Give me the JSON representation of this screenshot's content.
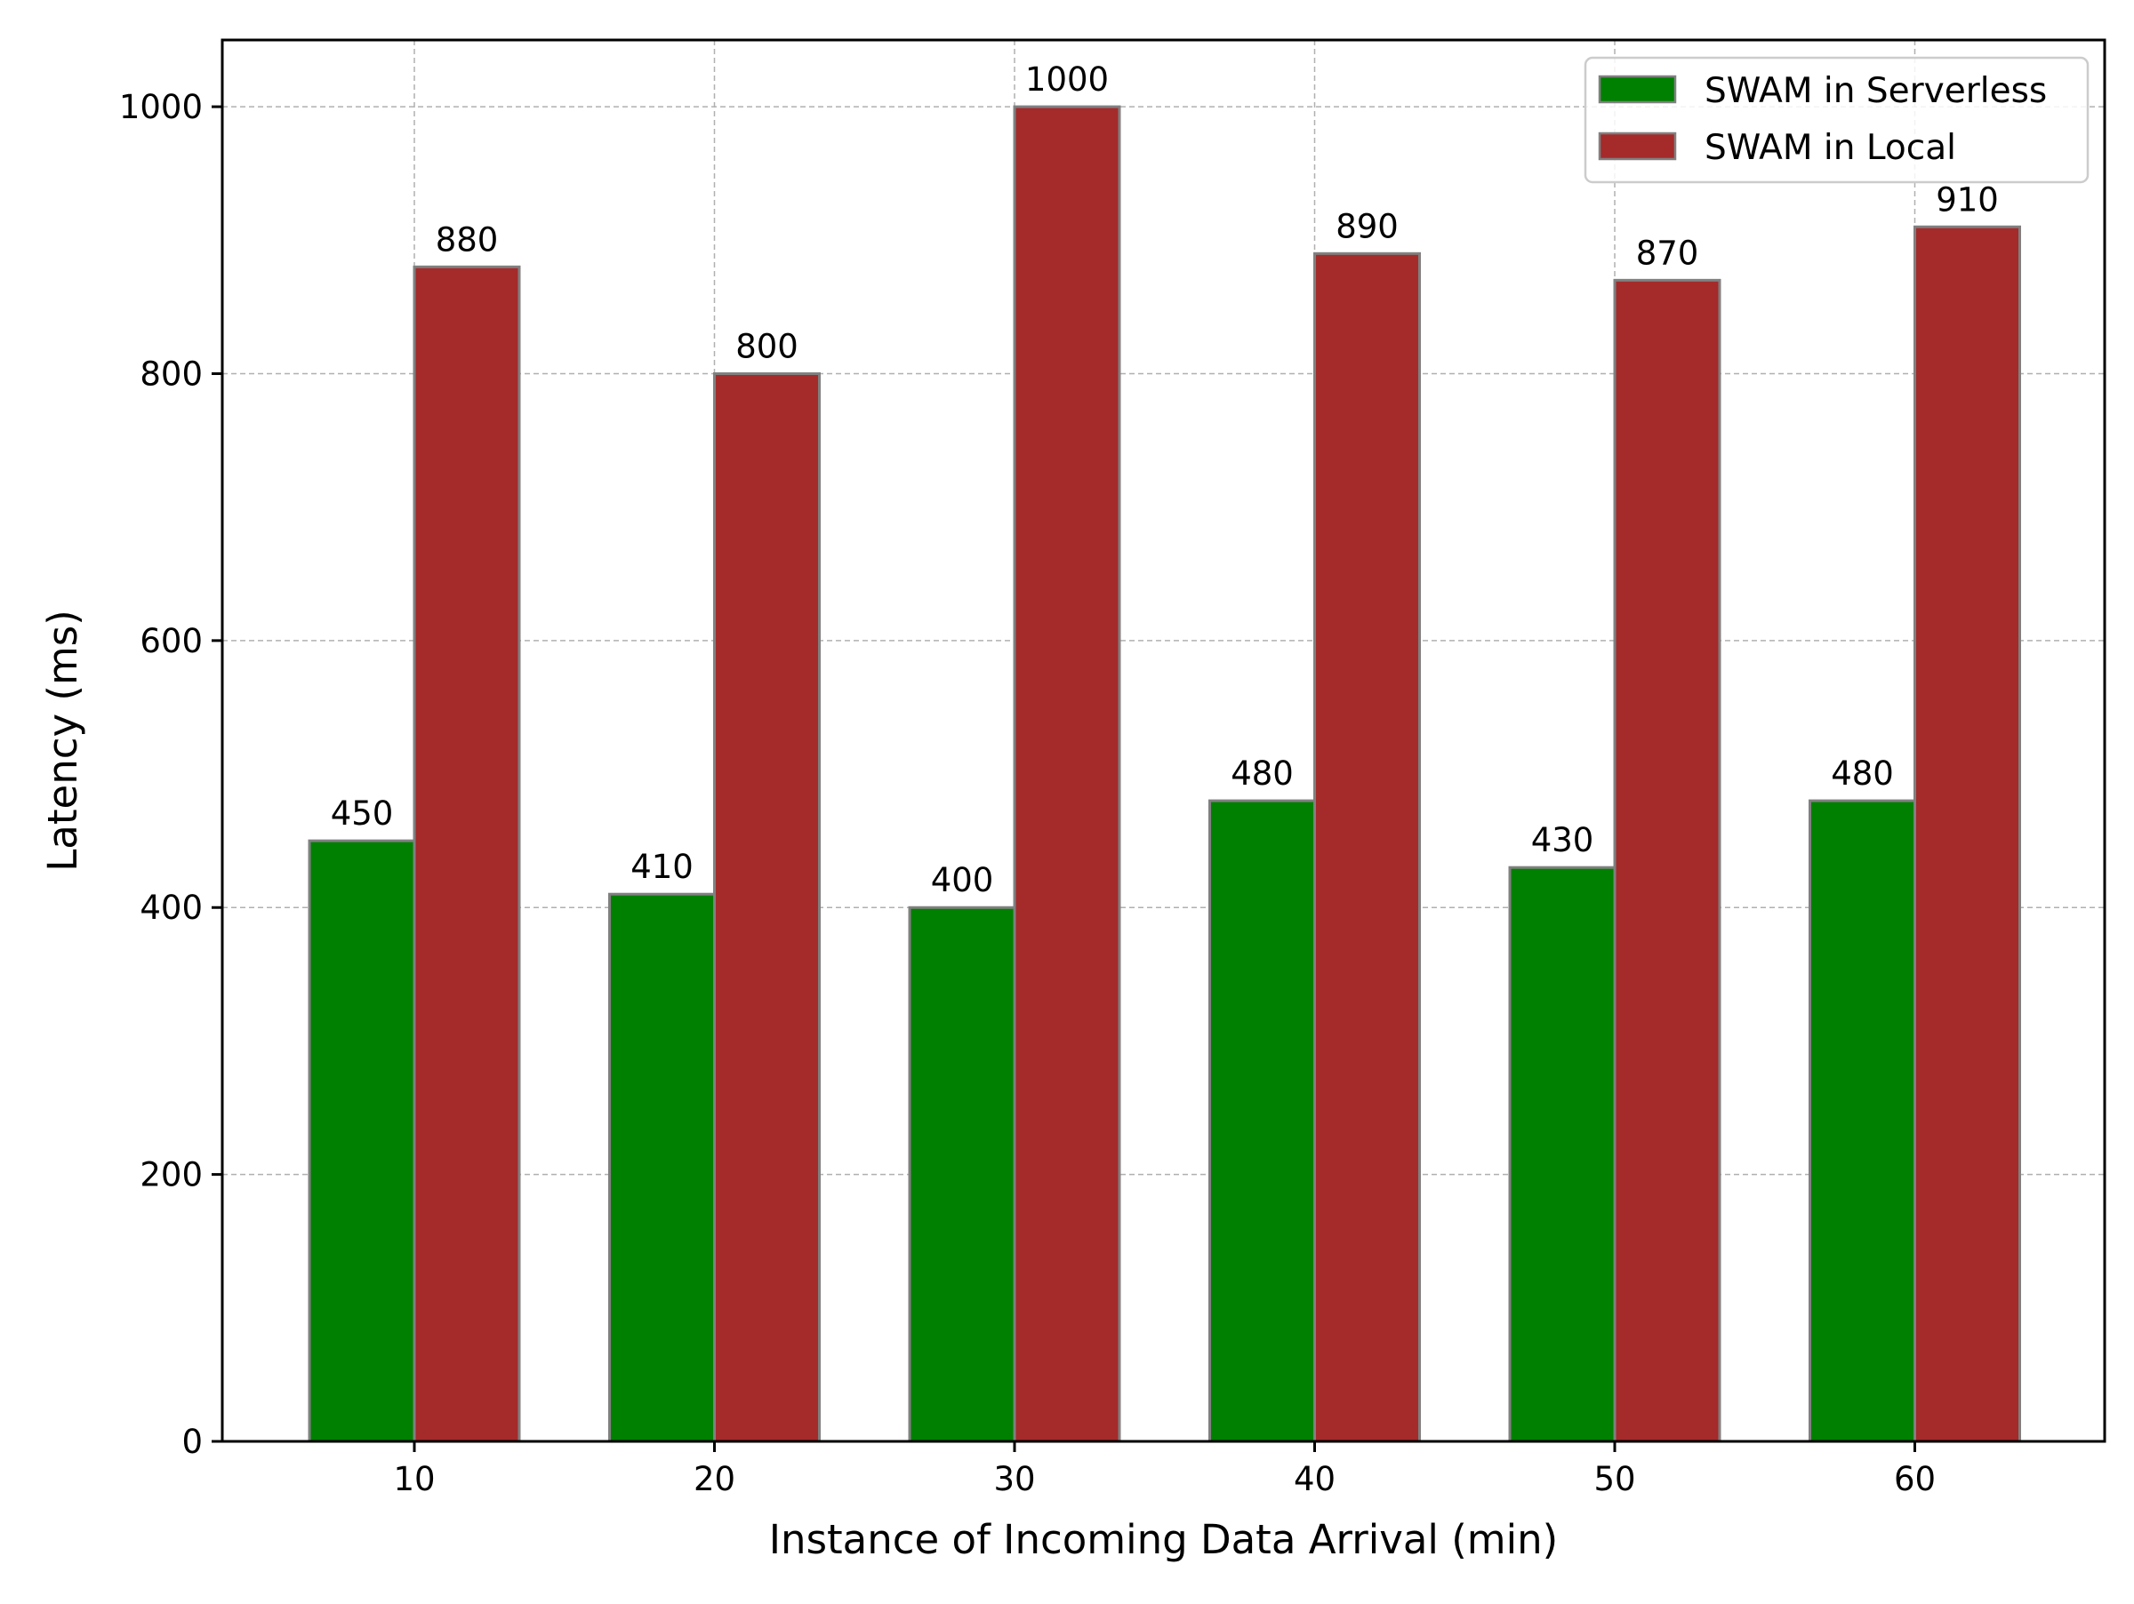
{
  "chart_data": {
    "type": "bar",
    "title": "",
    "xlabel": "Instance of Incoming Data Arrival (min)",
    "ylabel": "Latency (ms)",
    "categories": [
      "10",
      "20",
      "30",
      "40",
      "50",
      "60"
    ],
    "series": [
      {
        "name": "SWAM in Serverless",
        "color": "#008000",
        "values": [
          450,
          410,
          400,
          480,
          430,
          480
        ]
      },
      {
        "name": "SWAM in Local",
        "color": "#a52a2a",
        "values": [
          880,
          800,
          1000,
          890,
          870,
          910
        ]
      }
    ],
    "ylim": [
      0,
      1050
    ],
    "yticks": [
      0,
      200,
      400,
      600,
      800,
      1000
    ],
    "grid": true,
    "legend_position": "top-right"
  }
}
